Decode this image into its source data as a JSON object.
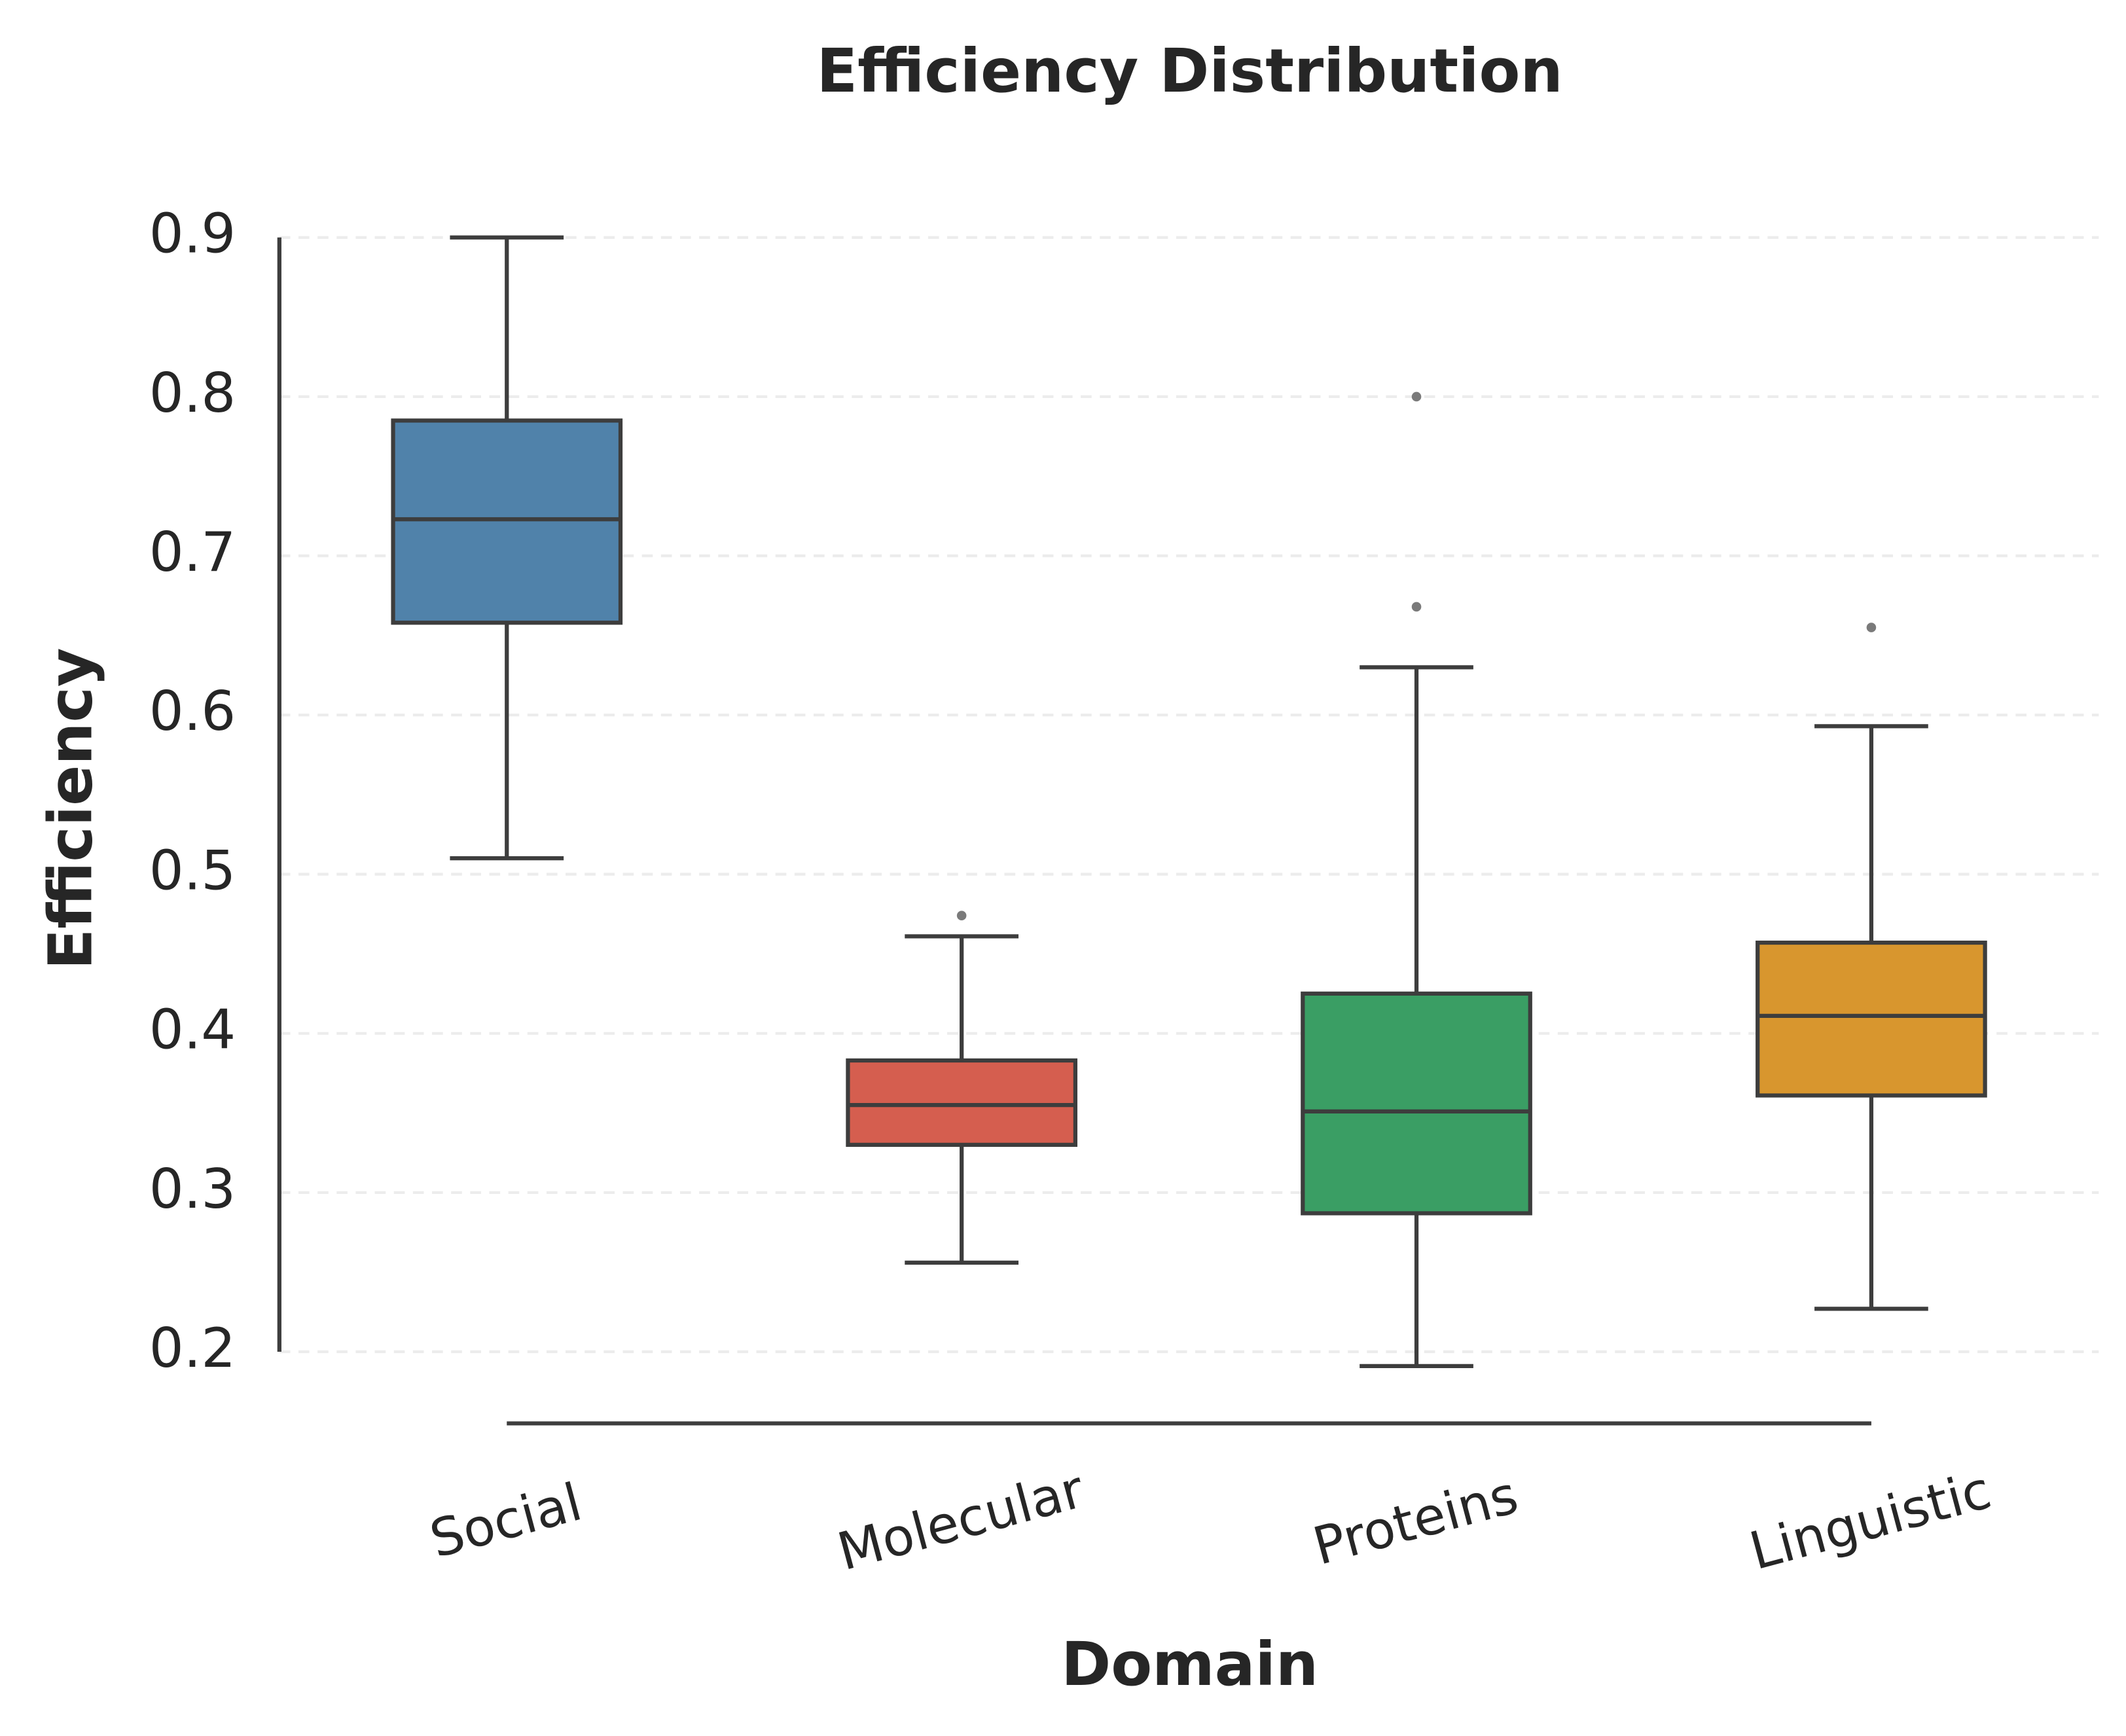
{
  "chart_data": {
    "type": "box",
    "title": "Efficiency Distribution",
    "x_label": "Domain",
    "y_label": "Efficiency",
    "categories": [
      "Social",
      "Molecular",
      "Proteins",
      "Linguistic"
    ],
    "colors": [
      "#5082aa",
      "#d55e4f",
      "#3a9e64",
      "#d8962e"
    ],
    "boxes": [
      {
        "whislo": 0.51,
        "q1": 0.658,
        "med": 0.723,
        "q3": 0.785,
        "whishi": 0.9,
        "fliers": []
      },
      {
        "whislo": 0.256,
        "q1": 0.33,
        "med": 0.355,
        "q3": 0.383,
        "whishi": 0.461,
        "fliers": [
          0.474
        ]
      },
      {
        "whislo": 0.191,
        "q1": 0.287,
        "med": 0.351,
        "q3": 0.425,
        "whishi": 0.63,
        "fliers": [
          0.8,
          0.668
        ]
      },
      {
        "whislo": 0.227,
        "q1": 0.361,
        "med": 0.411,
        "q3": 0.457,
        "whishi": 0.593,
        "fliers": [
          0.655
        ]
      }
    ],
    "ylim": [
      0.155,
      0.935
    ],
    "yticks": [
      0.2,
      0.3,
      0.4,
      0.5,
      0.6,
      0.7,
      0.8,
      0.9
    ],
    "grid": true
  }
}
